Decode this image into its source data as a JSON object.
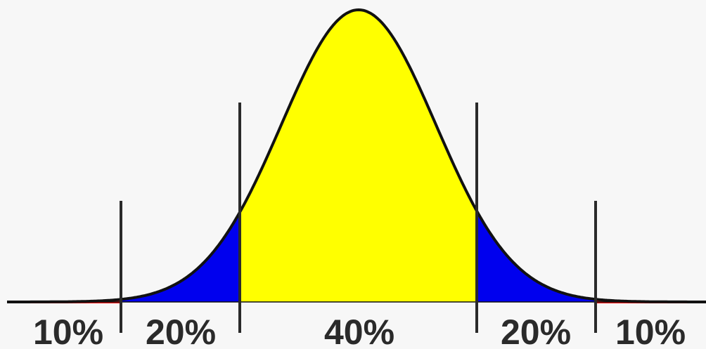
{
  "diagram": {
    "type": "normal-distribution-segments",
    "colors": {
      "tail": "#ee1111",
      "middle": "#0000ee",
      "center": "#ffff00",
      "curve": "#111111",
      "divider": "#2a2a2a",
      "background": "#f7f7f7"
    },
    "segments": [
      {
        "label": "10%",
        "role": "tail",
        "color": "#ee1111"
      },
      {
        "label": "20%",
        "role": "middle",
        "color": "#0000ee"
      },
      {
        "label": "40%",
        "role": "center",
        "color": "#ffff00"
      },
      {
        "label": "20%",
        "role": "middle",
        "color": "#0000ee"
      },
      {
        "label": "10%",
        "role": "tail",
        "color": "#ee1111"
      }
    ]
  }
}
